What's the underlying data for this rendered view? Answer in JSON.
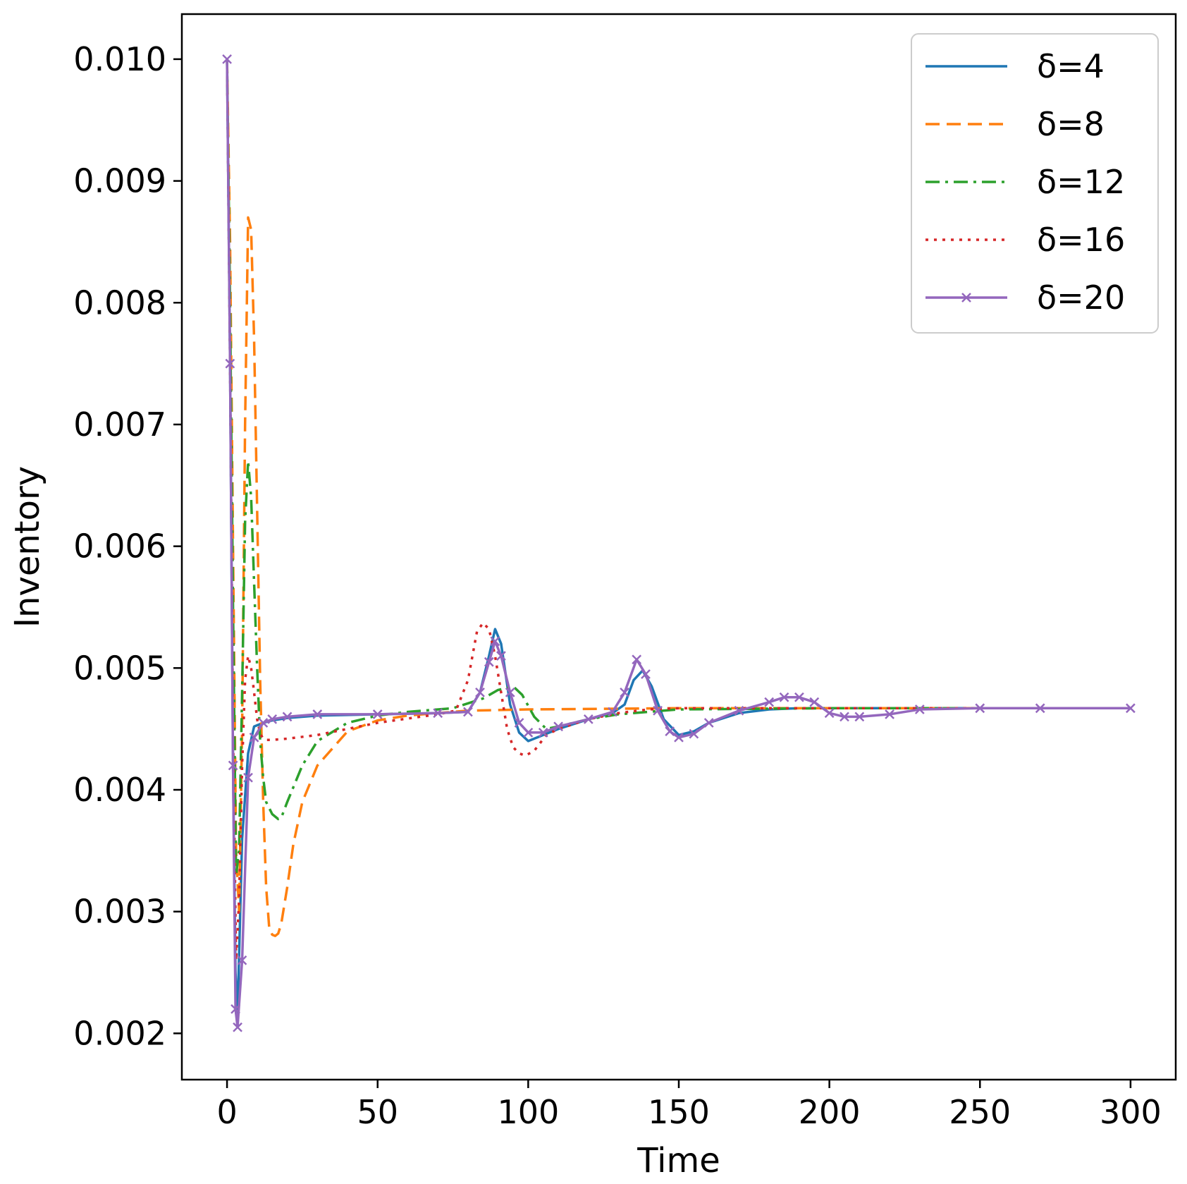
{
  "chart_data": {
    "type": "line",
    "title": "",
    "xlabel": "Time",
    "ylabel": "Inventory",
    "xlim": [
      -15,
      315
    ],
    "ylim": [
      0.00162,
      0.01037
    ],
    "xticks": [
      0,
      50,
      100,
      150,
      200,
      250,
      300
    ],
    "xtick_labels": [
      "0",
      "50",
      "100",
      "150",
      "200",
      "250",
      "300"
    ],
    "yticks": [
      0.002,
      0.003,
      0.004,
      0.005,
      0.006,
      0.007,
      0.008,
      0.009,
      0.01
    ],
    "ytick_labels": [
      "0.002",
      "0.003",
      "0.004",
      "0.005",
      "0.006",
      "0.007",
      "0.008",
      "0.009",
      "0.010"
    ],
    "grid": false,
    "legend_position": "top-right",
    "series": [
      {
        "name": "δ=4",
        "color": "#1f77b4",
        "style": "solid",
        "marker": "none",
        "x": [
          0,
          1,
          2,
          2.8,
          3.5,
          5,
          7,
          9,
          12,
          15,
          20,
          30,
          50,
          70,
          80,
          84,
          87,
          89,
          91,
          94,
          97,
          100,
          105,
          110,
          120,
          128,
          132,
          135,
          138,
          141,
          145,
          150,
          155,
          160,
          170,
          180,
          190,
          200,
          210,
          230,
          260,
          300
        ],
        "y": [
          0.01,
          0.0075,
          0.0042,
          0.0025,
          0.00215,
          0.0036,
          0.0043,
          0.00452,
          0.00455,
          0.00457,
          0.00459,
          0.00461,
          0.00462,
          0.00463,
          0.00464,
          0.0048,
          0.0051,
          0.00532,
          0.0052,
          0.0047,
          0.00447,
          0.0044,
          0.00445,
          0.0045,
          0.00458,
          0.00463,
          0.0047,
          0.0049,
          0.00498,
          0.00485,
          0.00458,
          0.00445,
          0.00448,
          0.00455,
          0.00463,
          0.00466,
          0.00467,
          0.00467,
          0.00467,
          0.00467,
          0.00467,
          0.00467
        ]
      },
      {
        "name": "δ=8",
        "color": "#ff7f0e",
        "style": "dashed",
        "marker": "none",
        "x": [
          0,
          1,
          2,
          3,
          4,
          5,
          6,
          7,
          8,
          9,
          10,
          11,
          12,
          13,
          14,
          15,
          16,
          17,
          18,
          20,
          22,
          25,
          30,
          40,
          50,
          60,
          80,
          100,
          150,
          200,
          250,
          300
        ],
        "y": [
          0.01,
          0.0085,
          0.006,
          0.0035,
          0.003,
          0.0045,
          0.007,
          0.0087,
          0.0086,
          0.0077,
          0.0063,
          0.0049,
          0.0039,
          0.0032,
          0.00287,
          0.00281,
          0.0028,
          0.00282,
          0.0029,
          0.0032,
          0.00355,
          0.0039,
          0.0042,
          0.00448,
          0.00457,
          0.00461,
          0.00465,
          0.00466,
          0.00467,
          0.00467,
          0.00467,
          0.00467
        ]
      },
      {
        "name": "δ=12",
        "color": "#2ca02c",
        "style": "dashdot",
        "marker": "none",
        "x": [
          0,
          1,
          2,
          3,
          4,
          5,
          6,
          7,
          8,
          9,
          10,
          11,
          12,
          13,
          15,
          17,
          18,
          20,
          25,
          30,
          40,
          50,
          60,
          75,
          85,
          90,
          95,
          98,
          102,
          106,
          110,
          120,
          130,
          150,
          200,
          300
        ],
        "y": [
          0.01,
          0.008,
          0.0055,
          0.0033,
          0.0035,
          0.0048,
          0.0062,
          0.0067,
          0.0064,
          0.0057,
          0.005,
          0.0044,
          0.0041,
          0.0039,
          0.0038,
          0.00376,
          0.00377,
          0.0039,
          0.0042,
          0.0044,
          0.00455,
          0.00461,
          0.00464,
          0.00467,
          0.00475,
          0.00482,
          0.00485,
          0.00478,
          0.0046,
          0.0045,
          0.00452,
          0.00458,
          0.00462,
          0.00466,
          0.00467,
          0.00467
        ]
      },
      {
        "name": "δ=16",
        "color": "#d62728",
        "style": "dotted",
        "marker": "none",
        "x": [
          0,
          1,
          2,
          3,
          4,
          5,
          6,
          7,
          8,
          9,
          10,
          11,
          12,
          13,
          15,
          20,
          30,
          50,
          70,
          76,
          80,
          83,
          85,
          87,
          89,
          91,
          93,
          95,
          97,
          99,
          102,
          106,
          110,
          120,
          130,
          140,
          150,
          170,
          200,
          300
        ],
        "y": [
          0.01,
          0.0075,
          0.0045,
          0.0026,
          0.0031,
          0.0042,
          0.0049,
          0.0051,
          0.005,
          0.0048,
          0.00458,
          0.00446,
          0.00442,
          0.00441,
          0.00441,
          0.00442,
          0.00445,
          0.00455,
          0.00462,
          0.00465,
          0.0049,
          0.0053,
          0.00537,
          0.00532,
          0.0051,
          0.0048,
          0.0045,
          0.00435,
          0.0043,
          0.00428,
          0.00432,
          0.00445,
          0.0045,
          0.00458,
          0.00463,
          0.00466,
          0.00467,
          0.00467,
          0.00467,
          0.00467
        ]
      },
      {
        "name": "δ=20",
        "color": "#9467bd",
        "style": "solid",
        "marker": "x",
        "x": [
          0,
          1,
          2,
          2.8,
          3.5,
          5,
          7,
          9,
          12,
          15,
          20,
          30,
          50,
          70,
          80,
          84,
          87,
          89,
          91,
          94,
          97,
          100,
          105,
          110,
          120,
          128,
          132,
          136,
          139,
          143,
          147,
          150,
          155,
          160,
          170,
          180,
          185,
          190,
          195,
          200,
          205,
          210,
          220,
          230,
          250,
          270,
          300
        ],
        "y": [
          0.01,
          0.0075,
          0.0042,
          0.0022,
          0.00205,
          0.0026,
          0.0041,
          0.00443,
          0.00455,
          0.00458,
          0.0046,
          0.00462,
          0.00462,
          0.00463,
          0.00464,
          0.0048,
          0.00505,
          0.00522,
          0.0051,
          0.0048,
          0.00455,
          0.00447,
          0.00447,
          0.00452,
          0.00458,
          0.00464,
          0.0048,
          0.00507,
          0.00495,
          0.00465,
          0.00448,
          0.00443,
          0.00446,
          0.00455,
          0.00465,
          0.00472,
          0.00476,
          0.00476,
          0.00472,
          0.00463,
          0.0046,
          0.0046,
          0.00462,
          0.00466,
          0.00467,
          0.00467,
          0.00467
        ]
      }
    ]
  }
}
